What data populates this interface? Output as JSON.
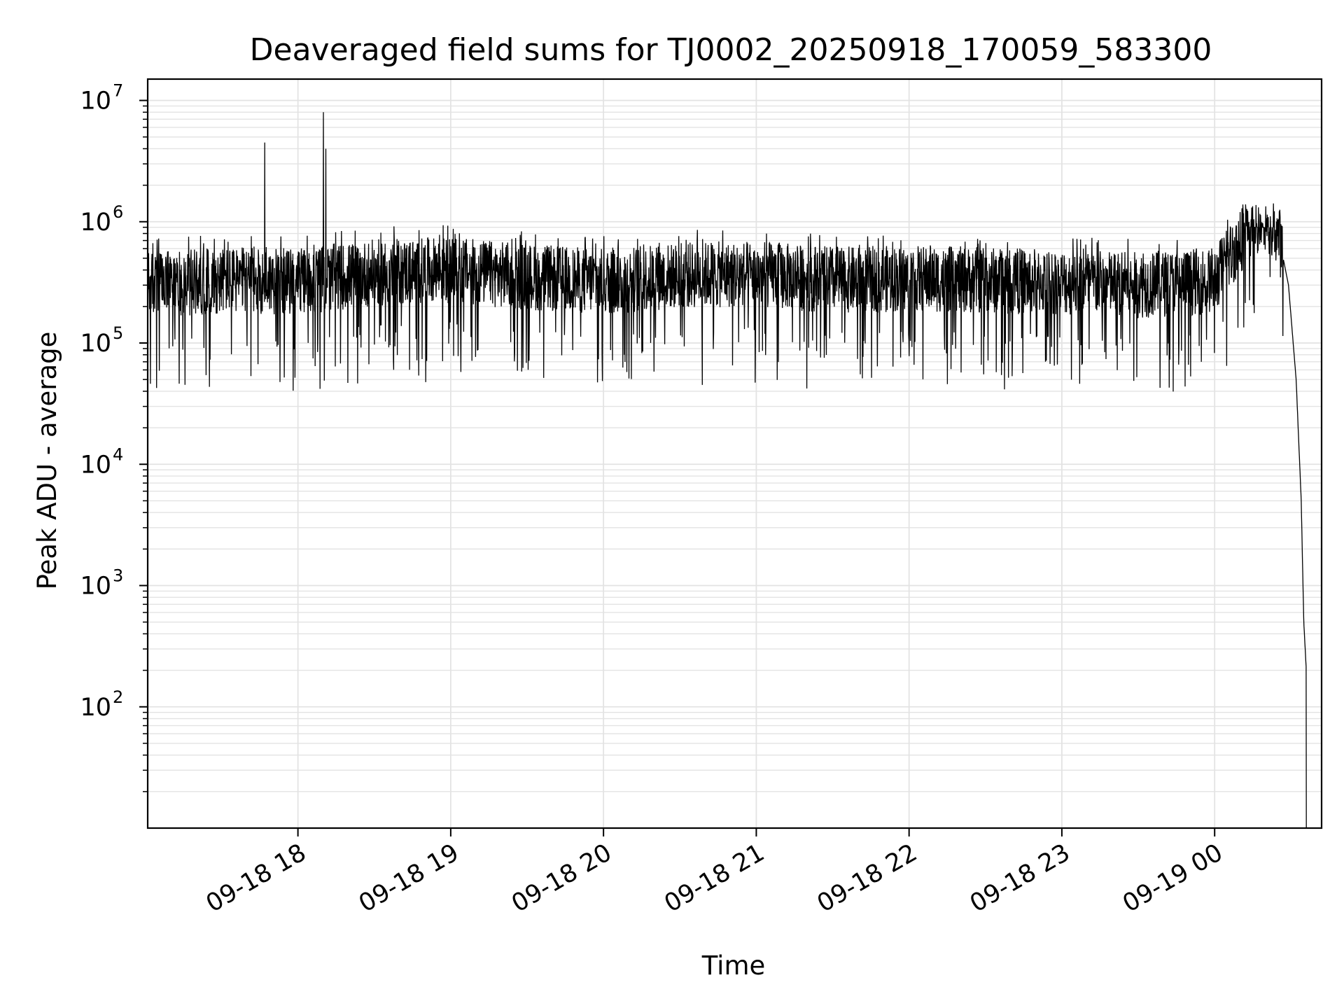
{
  "chart_data": {
    "type": "line",
    "title": "Deaveraged field sums for TJ0002_20250918_170059_583300",
    "xlabel": "Time",
    "ylabel": "Peak ADU - average",
    "x_scale": "time",
    "y_scale": "log",
    "xlim": [
      "2025-09-18 17:01",
      "2025-09-19 00:42"
    ],
    "ylim": [
      10,
      15000000
    ],
    "x_ticks": [
      "09-18 18",
      "09-18 19",
      "09-18 20",
      "09-18 21",
      "09-18 22",
      "09-18 23",
      "09-19 00"
    ],
    "x_tick_times": [
      "2025-09-18 18:00",
      "2025-09-18 19:00",
      "2025-09-18 20:00",
      "2025-09-18 21:00",
      "2025-09-18 22:00",
      "2025-09-18 23:00",
      "2025-09-19 00:00"
    ],
    "y_ticks": [
      100,
      1000,
      10000,
      100000,
      1000000,
      10000000
    ],
    "y_tick_labels": [
      {
        "base": "10",
        "exp": "2"
      },
      {
        "base": "10",
        "exp": "3"
      },
      {
        "base": "10",
        "exp": "4"
      },
      {
        "base": "10",
        "exp": "5"
      },
      {
        "base": "10",
        "exp": "6"
      },
      {
        "base": "10",
        "exp": "7"
      }
    ],
    "grid": true,
    "series": [
      {
        "color": "#000000",
        "baseline": 350000,
        "noise_range": [
          30000,
          900000
        ],
        "spikes": [
          {
            "t": "2025-09-18 17:47",
            "y": 4500000
          },
          {
            "t": "2025-09-18 18:10",
            "y": 8000000
          },
          {
            "t": "2025-09-18 18:11",
            "y": 4000000
          }
        ],
        "points": [
          {
            "t": "2025-09-18 17:01",
            "y": 300000
          },
          {
            "t": "2025-09-18 17:30",
            "y": 330000
          },
          {
            "t": "2025-09-18 18:00",
            "y": 320000
          },
          {
            "t": "2025-09-18 18:30",
            "y": 380000
          },
          {
            "t": "2025-09-18 19:00",
            "y": 400000
          },
          {
            "t": "2025-09-18 19:30",
            "y": 350000
          },
          {
            "t": "2025-09-18 20:00",
            "y": 320000
          },
          {
            "t": "2025-09-18 20:30",
            "y": 360000
          },
          {
            "t": "2025-09-18 21:00",
            "y": 370000
          },
          {
            "t": "2025-09-18 21:30",
            "y": 330000
          },
          {
            "t": "2025-09-18 22:00",
            "y": 340000
          },
          {
            "t": "2025-09-18 22:30",
            "y": 330000
          },
          {
            "t": "2025-09-18 23:00",
            "y": 320000
          },
          {
            "t": "2025-09-18 23:30",
            "y": 300000
          },
          {
            "t": "2025-09-19 00:00",
            "y": 330000
          },
          {
            "t": "2025-09-19 00:10",
            "y": 700000
          },
          {
            "t": "2025-09-19 00:15",
            "y": 1000000
          },
          {
            "t": "2025-09-19 00:20",
            "y": 1100000
          },
          {
            "t": "2025-09-19 00:25",
            "y": 800000
          },
          {
            "t": "2025-09-19 00:29",
            "y": 300000
          },
          {
            "t": "2025-09-19 00:32",
            "y": 50000
          },
          {
            "t": "2025-09-19 00:34",
            "y": 5000
          },
          {
            "t": "2025-09-19 00:35",
            "y": 500
          },
          {
            "t": "2025-09-19 00:36",
            "y": 200
          },
          {
            "t": "2025-09-19 00:36",
            "y": 10
          }
        ]
      }
    ]
  }
}
